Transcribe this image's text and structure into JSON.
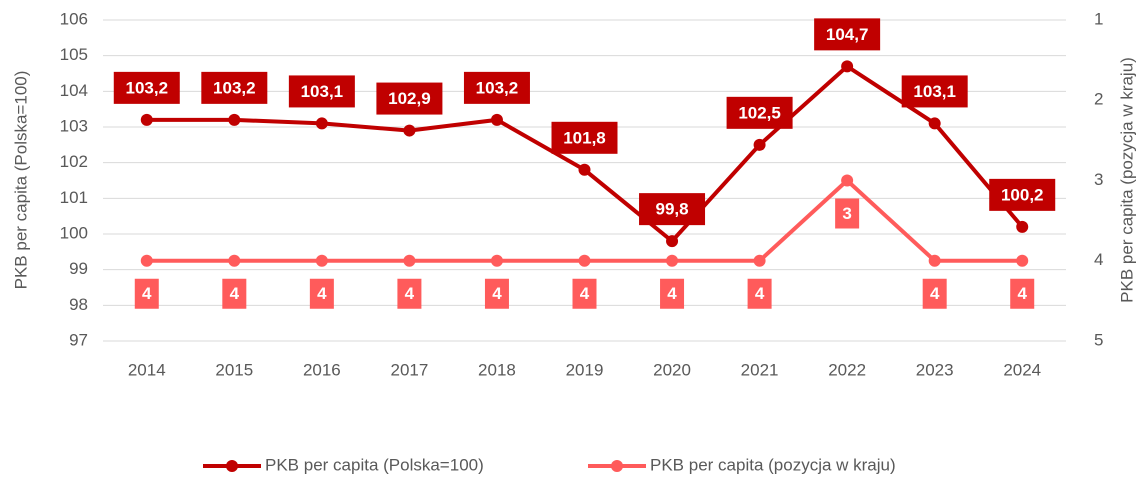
{
  "chart_data": {
    "type": "line",
    "x": [
      "2014",
      "2015",
      "2016",
      "2017",
      "2018",
      "2019",
      "2020",
      "2021",
      "2022",
      "2023",
      "2024"
    ],
    "series": [
      {
        "name": "PKB per capita (Polska=100)",
        "color": "#C00000",
        "values": [
          103.2,
          103.2,
          103.1,
          102.9,
          103.2,
          101.8,
          99.8,
          102.5,
          104.7,
          103.1,
          100.2
        ],
        "value_labels": [
          "103,2",
          "103,2",
          "103,1",
          "102,9",
          "103,2",
          "101,8",
          "99,8",
          "102,5",
          "104,7",
          "103,1",
          "100,2"
        ]
      },
      {
        "name": "PKB per capita (pozycja w kraju)",
        "color": "#FF5B5B",
        "axis": "y2",
        "values": [
          4,
          4,
          4,
          4,
          4,
          4,
          4,
          4,
          3,
          4,
          4
        ]
      }
    ],
    "ylabel": "PKB per capita (Polska=100)",
    "y2label": "PKB per capita (pozycja w kraju)",
    "ylim": [
      97,
      106
    ],
    "yticks": [
      97,
      98,
      99,
      100,
      101,
      102,
      103,
      104,
      105,
      106
    ],
    "y2lim": [
      5,
      1
    ],
    "y2ticks": [
      1,
      2,
      3,
      4,
      5
    ],
    "y2_reversed": true,
    "grid": true,
    "legend": "bottom"
  }
}
